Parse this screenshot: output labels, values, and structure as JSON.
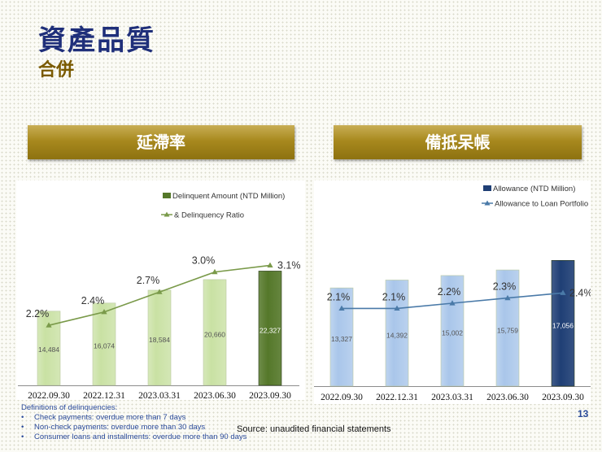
{
  "header": {
    "title": "資產品質",
    "subtitle": "合併"
  },
  "banners": {
    "left": "延滯率",
    "right": "備抵呆帳"
  },
  "colors": {
    "left_bar": "#c9e1a3",
    "left_bar_dark": "#55782a",
    "right_bar": "#a9c6ea",
    "right_bar_dark": "#1f3f75",
    "line": "#4a7aa8"
  },
  "chart_data": [
    {
      "type": "bar",
      "categories": [
        "2022.09.30",
        "2022.12.31",
        "2023.03.31",
        "2023.06.30",
        "2023.09.30"
      ],
      "series": [
        {
          "name": "Delinquent Amount (NTD Million)",
          "values": [
            14484,
            16074,
            18584,
            20660,
            22327
          ],
          "labels": [
            "14,484",
            "16,074",
            "18,584",
            "20,660",
            "22,327"
          ]
        },
        {
          "name": "& Delinquency Ratio",
          "values": [
            2.2,
            2.4,
            2.7,
            3.0,
            3.1
          ],
          "labels": [
            "2.2%",
            "2.4%",
            "2.7%",
            "3.0%",
            "3.1%"
          ]
        }
      ],
      "legend": [
        "Delinquent Amount (NTD Million)",
        "& Delinquency Ratio"
      ],
      "bar_ylim": [
        0,
        27000
      ],
      "line_ylim": [
        1.3,
        3.3
      ]
    },
    {
      "type": "bar",
      "categories": [
        "2022.09.30",
        "2022.12.31",
        "2023.03.31",
        "2023.06.30",
        "2023.09.30"
      ],
      "series": [
        {
          "name": "Allowance  (NTD Million)",
          "values": [
            13327,
            14392,
            15002,
            15759,
            17056
          ],
          "labels": [
            "13,327",
            "14,392",
            "15,002",
            "15,759",
            "17,056"
          ]
        },
        {
          "name": "Allowance to Loan Portfolio",
          "values": [
            2.1,
            2.1,
            2.2,
            2.3,
            2.4
          ],
          "labels": [
            "2.1%",
            "2.1%",
            "2.2%",
            "2.3%",
            "2.4%"
          ]
        }
      ],
      "legend": [
        "Allowance  (NTD Million)",
        "Allowance to Loan Portfolio"
      ],
      "bar_ylim": [
        0,
        21500
      ],
      "line_ylim": [
        0.6,
        3.0
      ]
    }
  ],
  "footnote": {
    "heading": "Definitions of delinquencies:",
    "items": [
      "Check payments: overdue more than 7 days",
      "Non-check payments: overdue  more than 30 days",
      "Consumer loans and installments: overdue more than 90 days"
    ]
  },
  "source": "Source: unaudited financial statements",
  "page_number": "13"
}
